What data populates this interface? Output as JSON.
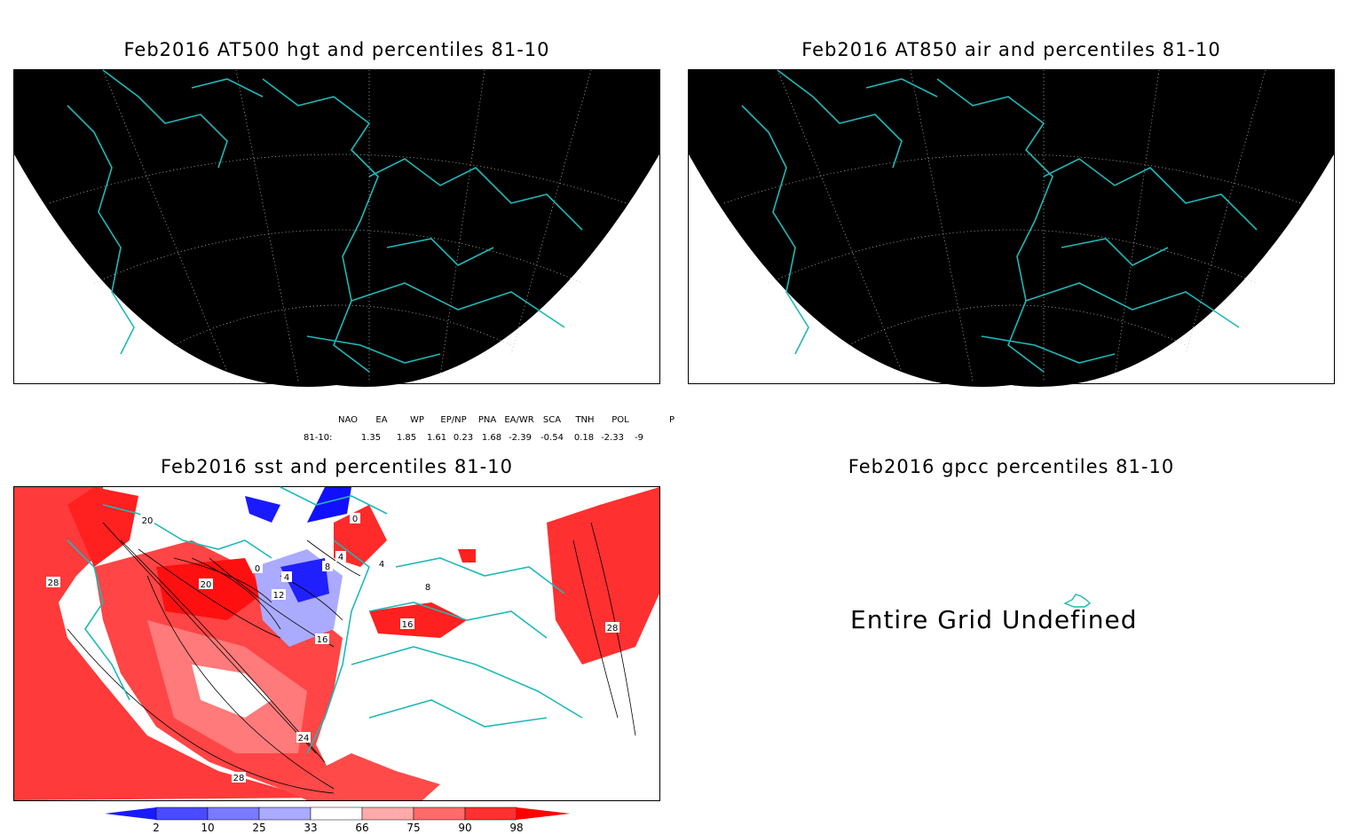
{
  "panels": [
    {
      "title": "Feb2016 AT500 hgt and percentiles 81-10"
    },
    {
      "title": "Feb2016 AT850 air and percentiles 81-10"
    },
    {
      "title": "Feb2016 sst and percentiles 81-10"
    },
    {
      "title": "Feb2016 gpcc percentiles 81-10",
      "message": "Entire Grid Undefined"
    }
  ],
  "indices": {
    "headers": [
      "NAO",
      "EA",
      "WP",
      "EP/NP",
      "PNA",
      "EA/WR",
      "SCA",
      "TNH",
      "POL",
      "P"
    ],
    "row_label": "81-10:",
    "values": [
      "1.35",
      "1.85",
      "1.61",
      "0.23",
      "1.68",
      "-2.39",
      "-0.54",
      "0.18",
      "-2.33",
      "-9"
    ]
  },
  "sst_contour_labels": [
    "28",
    "20",
    "0",
    "4",
    "8",
    "12",
    "16",
    "20",
    "24",
    "28",
    "4",
    "8",
    "16",
    "28",
    "4",
    "0"
  ],
  "colorbar": {
    "ticks": [
      "2",
      "10",
      "25",
      "33",
      "66",
      "75",
      "90",
      "98"
    ],
    "colors": [
      "#1a1aff",
      "#4a4aff",
      "#7a7aff",
      "#aaaaff",
      "#ffffff",
      "#ffaaaa",
      "#ff6a6a",
      "#ff3030",
      "#ff0000"
    ]
  },
  "colors": {
    "coast": "#1fb8b8",
    "land_bg": "#000000",
    "grid": "#bbbbbb"
  }
}
